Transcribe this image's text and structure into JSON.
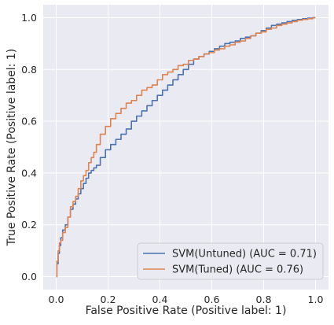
{
  "chart_data": {
    "type": "line",
    "xlabel": "False Positive Rate (Positive label: 1)",
    "ylabel": "True Positive Rate (Positive label: 1)",
    "xlim": [
      -0.05,
      1.05
    ],
    "ylim": [
      -0.05,
      1.05
    ],
    "xticks": [
      0.0,
      0.2,
      0.4,
      0.6,
      0.8,
      1.0
    ],
    "xtick_labels": [
      "0.0",
      "0.2",
      "0.4",
      "0.6",
      "0.8",
      "1.0"
    ],
    "yticks": [
      0.0,
      0.2,
      0.4,
      0.6,
      0.8,
      1.0
    ],
    "ytick_labels": [
      "0.0",
      "0.2",
      "0.4",
      "0.6",
      "0.8",
      "1.0"
    ],
    "grid": true,
    "legend_position": "lower-right",
    "series": [
      {
        "name": "SVM(Untuned) (AUC = 0.71)",
        "color": "#4c72b0",
        "x": [
          0.0,
          0.005,
          0.01,
          0.015,
          0.02,
          0.03,
          0.04,
          0.05,
          0.06,
          0.07,
          0.08,
          0.09,
          0.1,
          0.11,
          0.12,
          0.13,
          0.14,
          0.15,
          0.16,
          0.18,
          0.2,
          0.22,
          0.24,
          0.26,
          0.28,
          0.3,
          0.32,
          0.34,
          0.36,
          0.38,
          0.4,
          0.42,
          0.44,
          0.46,
          0.48,
          0.5,
          0.52,
          0.54,
          0.56,
          0.58,
          0.6,
          0.62,
          0.64,
          0.66,
          0.68,
          0.7,
          0.72,
          0.74,
          0.76,
          0.78,
          0.8,
          0.82,
          0.84,
          0.86,
          0.88,
          0.9,
          0.92,
          0.94,
          0.96,
          0.98,
          1.0
        ],
        "y": [
          0.0,
          0.05,
          0.09,
          0.12,
          0.15,
          0.18,
          0.2,
          0.23,
          0.26,
          0.28,
          0.3,
          0.32,
          0.34,
          0.36,
          0.38,
          0.4,
          0.41,
          0.42,
          0.43,
          0.46,
          0.49,
          0.51,
          0.53,
          0.55,
          0.57,
          0.6,
          0.62,
          0.64,
          0.66,
          0.68,
          0.7,
          0.72,
          0.74,
          0.76,
          0.78,
          0.8,
          0.82,
          0.84,
          0.85,
          0.86,
          0.87,
          0.88,
          0.89,
          0.9,
          0.905,
          0.91,
          0.92,
          0.925,
          0.93,
          0.94,
          0.95,
          0.96,
          0.97,
          0.975,
          0.98,
          0.985,
          0.99,
          0.993,
          0.996,
          0.998,
          1.0
        ]
      },
      {
        "name": "SVM(Tuned) (AUC = 0.76)",
        "color": "#dd8452",
        "x": [
          0.0,
          0.005,
          0.01,
          0.015,
          0.02,
          0.03,
          0.04,
          0.05,
          0.06,
          0.07,
          0.08,
          0.09,
          0.1,
          0.11,
          0.12,
          0.13,
          0.14,
          0.15,
          0.16,
          0.18,
          0.2,
          0.22,
          0.24,
          0.26,
          0.28,
          0.3,
          0.32,
          0.34,
          0.36,
          0.38,
          0.4,
          0.42,
          0.44,
          0.46,
          0.48,
          0.5,
          0.52,
          0.54,
          0.56,
          0.58,
          0.6,
          0.62,
          0.64,
          0.66,
          0.68,
          0.7,
          0.72,
          0.74,
          0.76,
          0.78,
          0.8,
          0.82,
          0.84,
          0.86,
          0.88,
          0.9,
          0.92,
          0.94,
          0.96,
          0.98,
          1.0
        ],
        "y": [
          0.0,
          0.06,
          0.1,
          0.13,
          0.14,
          0.17,
          0.19,
          0.23,
          0.27,
          0.29,
          0.31,
          0.34,
          0.37,
          0.39,
          0.41,
          0.44,
          0.46,
          0.48,
          0.51,
          0.55,
          0.58,
          0.61,
          0.63,
          0.65,
          0.67,
          0.68,
          0.7,
          0.72,
          0.73,
          0.74,
          0.76,
          0.78,
          0.79,
          0.8,
          0.815,
          0.82,
          0.835,
          0.84,
          0.85,
          0.86,
          0.865,
          0.875,
          0.88,
          0.89,
          0.895,
          0.905,
          0.91,
          0.92,
          0.93,
          0.94,
          0.945,
          0.955,
          0.96,
          0.97,
          0.975,
          0.98,
          0.985,
          0.99,
          0.993,
          0.996,
          1.0
        ]
      }
    ]
  }
}
